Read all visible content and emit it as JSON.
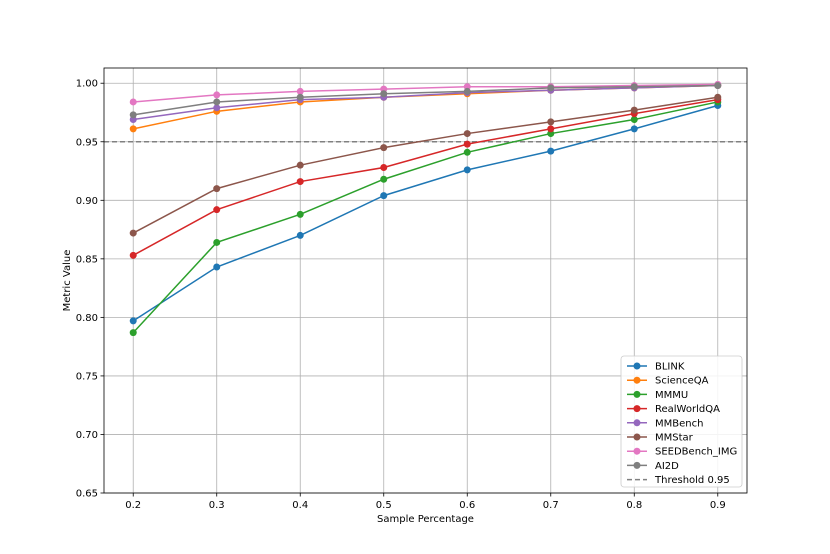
{
  "chart_data": {
    "type": "line",
    "title": "",
    "xlabel": "Sample Percentage",
    "ylabel": "Metric Value",
    "x": [
      0.2,
      0.3,
      0.4,
      0.5,
      0.6,
      0.7,
      0.8,
      0.9
    ],
    "x_ticks": [
      "0.2",
      "0.3",
      "0.4",
      "0.5",
      "0.6",
      "0.7",
      "0.8",
      "0.9"
    ],
    "y_ticks": [
      "0.65",
      "0.70",
      "0.75",
      "0.80",
      "0.85",
      "0.90",
      "0.95",
      "1.00"
    ],
    "xlim": [
      0.165,
      0.935
    ],
    "ylim": [
      0.65,
      1.013
    ],
    "grid": true,
    "legend_position": "lower-right",
    "series": [
      {
        "name": "BLINK",
        "color": "#1f77b4",
        "values": [
          0.797,
          0.843,
          0.87,
          0.904,
          0.926,
          0.942,
          0.961,
          0.981
        ]
      },
      {
        "name": "ScienceQA",
        "color": "#ff7f0e",
        "values": [
          0.961,
          0.976,
          0.984,
          0.988,
          0.991,
          0.994,
          0.996,
          0.998
        ]
      },
      {
        "name": "MMMU",
        "color": "#2ca02c",
        "values": [
          0.787,
          0.864,
          0.888,
          0.918,
          0.941,
          0.957,
          0.969,
          0.984
        ]
      },
      {
        "name": "RealWorldQA",
        "color": "#d62728",
        "values": [
          0.853,
          0.892,
          0.916,
          0.928,
          0.948,
          0.961,
          0.974,
          0.986
        ]
      },
      {
        "name": "MMBench",
        "color": "#9467bd",
        "values": [
          0.969,
          0.979,
          0.986,
          0.988,
          0.992,
          0.994,
          0.996,
          0.998
        ]
      },
      {
        "name": "MMStar",
        "color": "#8c564b",
        "values": [
          0.872,
          0.91,
          0.93,
          0.945,
          0.957,
          0.967,
          0.977,
          0.988
        ]
      },
      {
        "name": "SEEDBench_IMG",
        "color": "#e377c2",
        "values": [
          0.984,
          0.99,
          0.993,
          0.995,
          0.997,
          0.997,
          0.998,
          0.999
        ]
      },
      {
        "name": "AI2D",
        "color": "#7f7f7f",
        "values": [
          0.973,
          0.984,
          0.988,
          0.991,
          0.993,
          0.996,
          0.997,
          0.998
        ]
      }
    ],
    "threshold": {
      "name": "Threshold 0.95",
      "value": 0.95,
      "color": "#808080"
    }
  }
}
